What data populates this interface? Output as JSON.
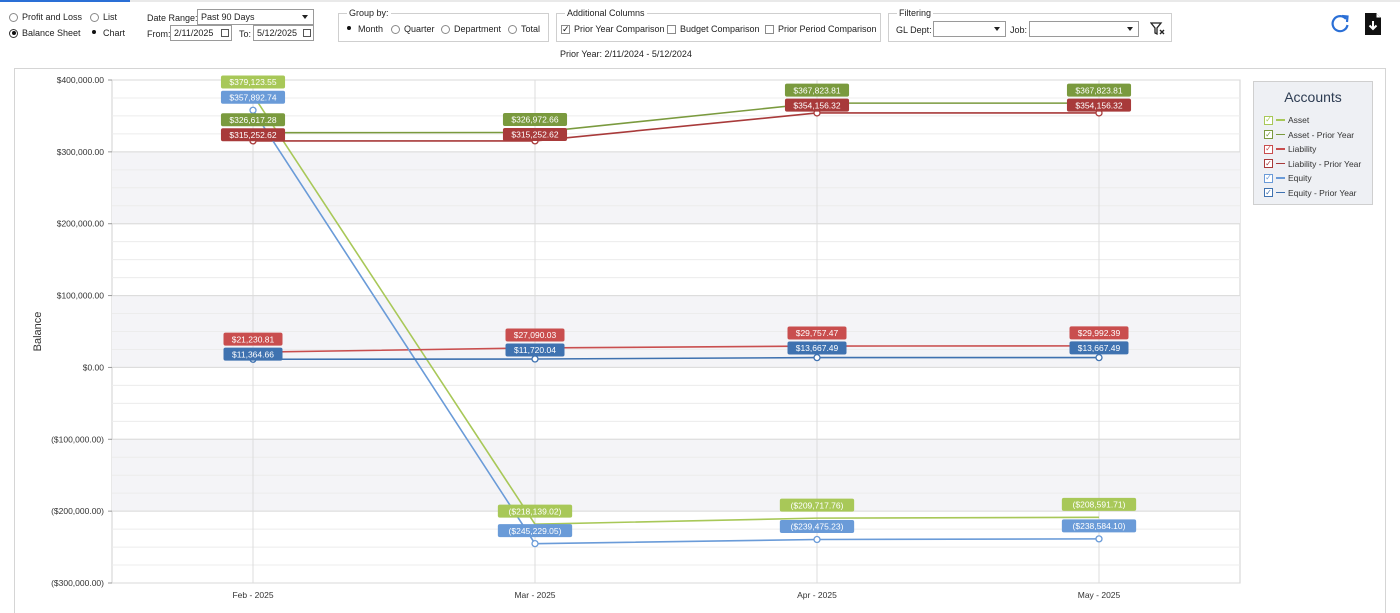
{
  "report_type": {
    "profit_and_loss": "Profit and Loss",
    "balance_sheet": "Balance Sheet",
    "selected": "Balance Sheet"
  },
  "view_mode": {
    "list": "List",
    "chart": "Chart",
    "selected": "Chart"
  },
  "date_range": {
    "label": "Date Range:",
    "value": "Past 90 Days",
    "from_label": "From:",
    "from_value": "2/11/2025",
    "to_label": "To:",
    "to_value": "5/12/2025"
  },
  "group_by": {
    "title": "Group by:",
    "options": [
      "Month",
      "Quarter",
      "Department",
      "Total"
    ],
    "selected": "Month"
  },
  "additional_columns": {
    "title": "Additional Columns",
    "options": [
      {
        "label": "Prior Year Comparison",
        "checked": true
      },
      {
        "label": "Budget Comparison",
        "checked": false
      },
      {
        "label": "Prior Period Comparison",
        "checked": false
      }
    ],
    "prior_year_note": "Prior Year: 2/11/2024 - 5/12/2024"
  },
  "filtering": {
    "title": "Filtering",
    "gl_dept_label": "GL Dept:",
    "gl_dept_value": "",
    "job_label": "Job:",
    "job_value": ""
  },
  "icons": {
    "refresh": "refresh-icon",
    "export": "export-document-icon",
    "clear_filter": "filter-clear-icon"
  },
  "colors": {
    "accent": "#2a6fd6",
    "asset_current": "#a8c858",
    "asset_prior": "#7a9a3e",
    "liability_current": "#c94e4e",
    "liability_prior": "#a83a3a",
    "equity_current": "#6a9bd8",
    "equity_prior": "#3f72b0"
  },
  "chart_data": {
    "type": "line",
    "ylabel": "Balance",
    "xlabel": "",
    "categories": [
      "Feb - 2025",
      "Mar - 2025",
      "Apr - 2025",
      "May - 2025"
    ],
    "ylim": [
      -300000,
      400000
    ],
    "yticks": [
      "$400,000.00",
      "$300,000.00",
      "$200,000.00",
      "$100,000.00",
      "$0.00",
      "($100,000.00)",
      "($200,000.00)",
      "($300,000.00)"
    ],
    "ytick_values": [
      400000,
      300000,
      200000,
      100000,
      0,
      -100000,
      -200000,
      -300000
    ],
    "grid": true,
    "legend_title": "Accounts",
    "legend_position": "right",
    "series": [
      {
        "name": "Asset",
        "color": "#a8c858",
        "values": [
          379123.55,
          -218139.02,
          -209717.76,
          -208591.71
        ],
        "labels": [
          "$379,123.55",
          "($218,139.02)",
          "($209,717.76)",
          "($208,591.71)"
        ],
        "markers": false
      },
      {
        "name": "Asset - Prior Year",
        "color": "#7a9a3e",
        "values": [
          326617.28,
          326972.66,
          367823.81,
          367823.81
        ],
        "labels": [
          "$326,617.28",
          "$326,972.66",
          "$367,823.81",
          "$367,823.81"
        ],
        "markers": false
      },
      {
        "name": "Liability",
        "color": "#c94e4e",
        "values": [
          21230.81,
          27090.03,
          29757.47,
          29992.39
        ],
        "labels": [
          "$21,230.81",
          "$27,090.03",
          "$29,757.47",
          "$29,992.39"
        ],
        "markers": true
      },
      {
        "name": "Liability - Prior Year",
        "color": "#a83a3a",
        "values": [
          315252.62,
          315252.62,
          354156.32,
          354156.32
        ],
        "labels": [
          "$315,252.62",
          "$315,252.62",
          "$354,156.32",
          "$354,156.32"
        ],
        "markers": true
      },
      {
        "name": "Equity",
        "color": "#6a9bd8",
        "values": [
          357892.74,
          -245229.05,
          -239475.23,
          -238584.1
        ],
        "labels": [
          "$357,892.74",
          "($245,229.05)",
          "($239,475.23)",
          "($238,584.10)"
        ],
        "markers": true
      },
      {
        "name": "Equity - Prior Year",
        "color": "#3f72b0",
        "values": [
          11364.66,
          11720.04,
          13667.49,
          13667.49
        ],
        "labels": [
          "$11,364.66",
          "$11,720.04",
          "$13,667.49",
          "$13,667.49"
        ],
        "markers": true
      }
    ]
  }
}
